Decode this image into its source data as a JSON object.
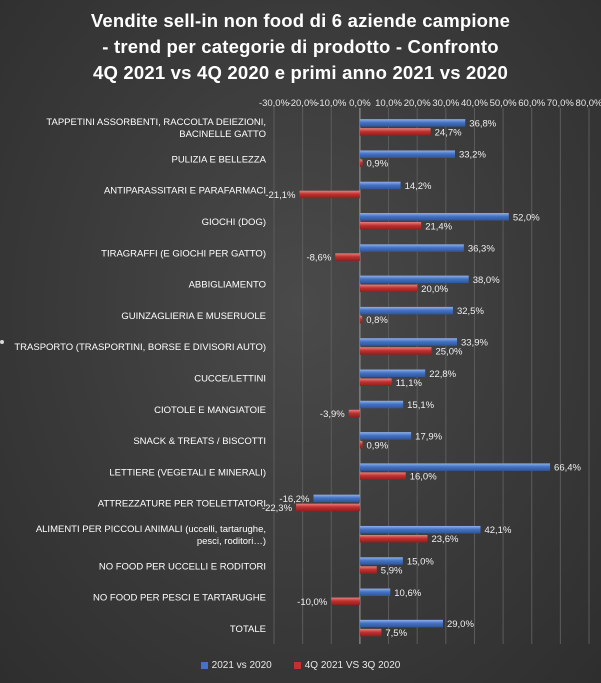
{
  "chart_data": {
    "type": "bar",
    "orientation": "horizontal",
    "title_lines": [
      "Vendite sell-in non food di 6 aziende campione",
      "- trend per categorie di prodotto - Confronto",
      "4Q 2021 vs 4Q 2020 e primi anno 2021 vs 2020"
    ],
    "xlim": [
      -30,
      80
    ],
    "x_ticks": [
      -30,
      -20,
      -10,
      0,
      10,
      20,
      30,
      40,
      50,
      60,
      70,
      80
    ],
    "x_tick_labels": [
      "-30,0%",
      "-20,0%",
      "-10,0%",
      "0,0%",
      "10,0%",
      "20,0%",
      "30,0%",
      "40,0%",
      "50,0%",
      "60,0%",
      "70,0%",
      "80,0%"
    ],
    "grid": true,
    "legend_position": "bottom",
    "categories": [
      [
        "TAPPETINI ASSORBENTI, RACCOLTA DEIEZIONI,",
        "BACINELLE GATTO"
      ],
      [
        "PULIZIA E BELLEZZA"
      ],
      [
        "ANTIPARASSITARI E PARAFARMACI"
      ],
      [
        "GIOCHI (DOG)"
      ],
      [
        "TIRAGRAFFI (E GIOCHI PER GATTO)"
      ],
      [
        "ABBIGLIAMENTO"
      ],
      [
        "GUINZAGLIERIA E MUSERUOLE"
      ],
      [
        "TRASPORTO (TRASPORTINI,  BORSE E DIVISORI AUTO)"
      ],
      [
        "CUCCE/LETTINI"
      ],
      [
        "CIOTOLE E MANGIATOIE"
      ],
      [
        "SNACK & TREATS / BISCOTTI"
      ],
      [
        "LETTIERE (VEGETALI E MINERALI)"
      ],
      [
        "ATTREZZATURE PER TOELETTATORI"
      ],
      [
        "ALIMENTI PER PICCOLI ANIMALI (uccelli, tartarughe,",
        "pesci, roditori…)"
      ],
      [
        "NO FOOD PER UCCELLI E RODITORI"
      ],
      [
        "NO FOOD PER PESCI E TARTARUGHE"
      ],
      [
        "TOTALE"
      ]
    ],
    "series": [
      {
        "name": "2021 vs 2020",
        "color": "#4472c4",
        "values": [
          36.8,
          33.2,
          14.2,
          52.0,
          36.3,
          38.0,
          32.5,
          33.9,
          22.8,
          15.1,
          17.9,
          66.4,
          -16.2,
          42.1,
          15.0,
          10.6,
          29.0
        ],
        "labels": [
          "36,8%",
          "33,2%",
          "14,2%",
          "52,0%",
          "36,3%",
          "38,0%",
          "32,5%",
          "33,9%",
          "22,8%",
          "15,1%",
          "17,9%",
          "66,4%",
          "-16,2%",
          "42,1%",
          "15,0%",
          "10,6%",
          "29,0%"
        ]
      },
      {
        "name": "4Q 2021 VS 3Q 2020",
        "color": "#c0312f",
        "values": [
          24.7,
          0.9,
          -21.1,
          21.4,
          -8.6,
          20.0,
          0.8,
          25.0,
          11.1,
          -3.9,
          0.9,
          16.0,
          -22.3,
          23.6,
          5.9,
          -10.0,
          7.5
        ],
        "labels": [
          "24,7%",
          "0,9%",
          "-21,1%",
          "21,4%",
          "-8,6%",
          "20,0%",
          "0,8%",
          "25,0%",
          "11,1%",
          "-3,9%",
          "0,9%",
          "16,0%",
          "-22,3%",
          "23,6%",
          "5,9%",
          "-10,0%",
          "7,5%"
        ]
      }
    ]
  }
}
